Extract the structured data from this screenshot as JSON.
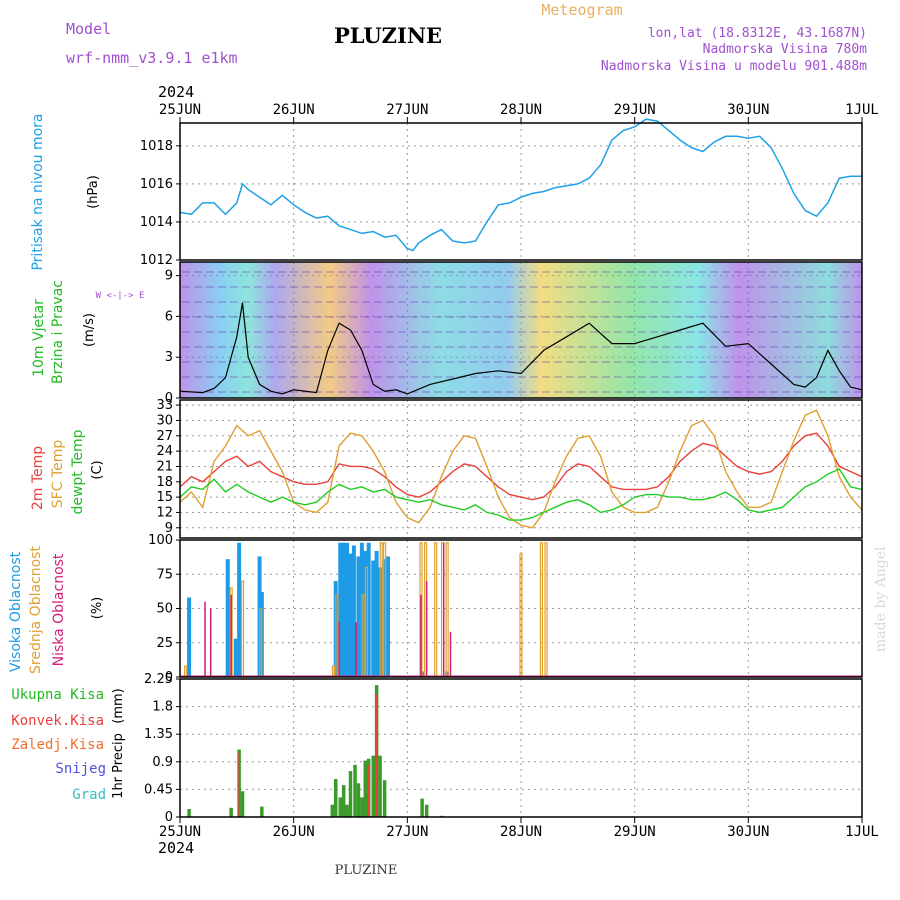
{
  "header": {
    "model_label": "Model",
    "model_name": "wrf-nmm_v3.9.1  e1km",
    "title": "PLUZINE",
    "meteogram_label": "Meteogram",
    "coords": "lon,lat (18.8312E, 43.1687N)",
    "elevation": "Nadmorska Visina 780m",
    "model_elevation": "Nadmorska Visina u modelu 901.488m",
    "year_top": "2024",
    "year_bottom": "2024",
    "footer_title": "PLUZINE",
    "watermark": "made by Angel"
  },
  "time_axis": {
    "labels": [
      "25JUN",
      "26JUN",
      "27JUN",
      "28JUN",
      "29JUN",
      "30JUN",
      "1JUL"
    ]
  },
  "colors": {
    "pressure": "#1ea0e6",
    "temp2m": "#e8413c",
    "sfc_temp": "#e0a030",
    "dewpt": "#22cc22",
    "high_cloud": "#1e9be6",
    "mid_cloud": "#e0a030",
    "low_cloud": "#d0207a",
    "precip_total": "#3a9a2a",
    "precip_conv": "#e8413c"
  },
  "chart_data": [
    {
      "type": "line",
      "name": "pressure",
      "ylabel": "Pritisak na nivou mora",
      "unit": "(hPa)",
      "ylim": [
        1012,
        1019.2
      ],
      "yticks": [
        1012,
        1014,
        1016,
        1018
      ],
      "x_days": [
        0,
        0.1,
        0.2,
        0.3,
        0.4,
        0.5,
        0.55,
        0.6,
        0.7,
        0.8,
        0.9,
        1.0,
        1.1,
        1.2,
        1.3,
        1.4,
        1.5,
        1.6,
        1.7,
        1.8,
        1.9,
        2.0,
        2.05,
        2.1,
        2.2,
        2.3,
        2.4,
        2.5,
        2.6,
        2.7,
        2.8,
        2.9,
        3.0,
        3.1,
        3.2,
        3.3,
        3.4,
        3.5,
        3.6,
        3.7,
        3.8,
        3.9,
        4.0,
        4.1,
        4.2,
        4.3,
        4.4,
        4.5,
        4.6,
        4.7,
        4.8,
        4.9,
        5.0,
        5.1,
        5.2,
        5.3,
        5.4,
        5.5,
        5.6,
        5.7,
        5.8,
        5.9,
        6.0
      ],
      "values": [
        1014.5,
        1014.4,
        1015.0,
        1015.0,
        1014.4,
        1015.0,
        1016.0,
        1015.7,
        1015.3,
        1014.9,
        1015.4,
        1014.9,
        1014.5,
        1014.2,
        1014.3,
        1013.8,
        1013.6,
        1013.4,
        1013.5,
        1013.2,
        1013.3,
        1012.6,
        1012.5,
        1012.9,
        1013.3,
        1013.6,
        1013.0,
        1012.9,
        1013.0,
        1014.0,
        1014.9,
        1015.0,
        1015.3,
        1015.5,
        1015.6,
        1015.8,
        1015.9,
        1016.0,
        1016.3,
        1017.0,
        1018.3,
        1018.8,
        1019.0,
        1019.4,
        1019.3,
        1018.8,
        1018.3,
        1017.9,
        1017.7,
        1018.2,
        1018.5,
        1018.5,
        1018.4,
        1018.5,
        1017.9,
        1016.8,
        1015.5,
        1014.6,
        1014.3,
        1015.0,
        1016.3,
        1016.4,
        1016.4
      ]
    },
    {
      "type": "line",
      "name": "wind",
      "ylabel": "10m Vjetar",
      "ylabel2": "Brzina i Pravac",
      "unit": "(m/s)",
      "compass": "W <-|-> E",
      "ylim": [
        0,
        10
      ],
      "yticks": [
        0,
        3,
        6,
        9
      ],
      "x_days": [
        0,
        0.2,
        0.3,
        0.4,
        0.5,
        0.55,
        0.6,
        0.7,
        0.8,
        0.9,
        1.0,
        1.2,
        1.3,
        1.4,
        1.5,
        1.6,
        1.7,
        1.8,
        1.9,
        2.0,
        2.2,
        2.4,
        2.6,
        2.8,
        3.0,
        3.2,
        3.4,
        3.6,
        3.8,
        4.0,
        4.2,
        4.4,
        4.6,
        4.8,
        5.0,
        5.2,
        5.4,
        5.5,
        5.6,
        5.7,
        5.8,
        5.9,
        6.0
      ],
      "values": [
        0.5,
        0.4,
        0.7,
        1.5,
        4.5,
        7.0,
        3.0,
        1.0,
        0.5,
        0.3,
        0.6,
        0.4,
        3.5,
        5.5,
        5.0,
        3.5,
        1.0,
        0.5,
        0.6,
        0.3,
        1.0,
        1.4,
        1.8,
        2.0,
        1.8,
        3.5,
        4.5,
        5.5,
        4.0,
        4.0,
        4.5,
        5.0,
        5.5,
        3.8,
        4.0,
        2.5,
        1.0,
        0.8,
        1.5,
        3.5,
        2.0,
        0.8,
        0.6
      ]
    },
    {
      "type": "line",
      "name": "temperature",
      "ylabel": "2m Temp",
      "ylabel2": "SFC Temp",
      "ylabel3": "dewpt Temp",
      "unit": "(C)",
      "ylim": [
        7,
        34
      ],
      "yticks": [
        9,
        12,
        15,
        18,
        21,
        24,
        27,
        30,
        33
      ],
      "x_days": [
        0,
        0.1,
        0.2,
        0.3,
        0.4,
        0.5,
        0.6,
        0.7,
        0.8,
        0.9,
        1.0,
        1.1,
        1.2,
        1.3,
        1.4,
        1.5,
        1.6,
        1.7,
        1.8,
        1.9,
        2.0,
        2.1,
        2.2,
        2.3,
        2.4,
        2.5,
        2.6,
        2.7,
        2.8,
        2.9,
        3.0,
        3.1,
        3.2,
        3.3,
        3.4,
        3.5,
        3.6,
        3.7,
        3.8,
        3.9,
        4.0,
        4.1,
        4.2,
        4.3,
        4.4,
        4.5,
        4.6,
        4.7,
        4.8,
        4.9,
        5.0,
        5.1,
        5.2,
        5.3,
        5.4,
        5.5,
        5.6,
        5.7,
        5.8,
        5.9,
        6.0
      ],
      "series": [
        {
          "name": "2m Temp",
          "values": [
            17,
            19,
            18,
            20,
            22,
            23,
            21,
            22,
            20,
            19,
            18,
            17.5,
            17.5,
            18,
            21.5,
            21,
            21,
            20.5,
            19,
            17,
            15.5,
            15,
            16,
            18,
            20,
            21.5,
            21,
            19,
            17,
            15.5,
            15,
            14.5,
            15,
            17,
            20,
            21.5,
            21,
            19,
            17,
            16.5,
            16.5,
            16.5,
            17,
            19,
            22,
            24,
            25.5,
            25,
            23,
            21,
            20,
            19.5,
            20,
            22,
            25,
            27,
            27.5,
            25,
            21,
            20,
            19
          ]
        },
        {
          "name": "SFC Temp",
          "values": [
            14,
            16,
            13,
            22,
            25,
            29,
            27,
            28,
            24,
            20,
            14,
            12.5,
            12,
            14,
            25,
            27.5,
            27,
            24,
            20,
            14,
            11,
            10,
            13,
            19,
            24,
            27,
            26.5,
            21,
            15,
            11,
            9.5,
            9,
            12,
            18,
            23,
            26.5,
            27,
            23,
            16,
            13,
            12,
            12,
            13,
            18,
            24,
            29,
            30,
            27,
            20,
            16,
            13,
            13,
            14,
            20,
            26,
            31,
            32,
            27,
            19,
            15,
            12.5
          ]
        },
        {
          "name": "dewpt Temp",
          "values": [
            15,
            17,
            16.5,
            18.5,
            16,
            17.5,
            16,
            15,
            14,
            15,
            14,
            13.5,
            14,
            16,
            17.5,
            16.5,
            17,
            16,
            16.5,
            15,
            14.5,
            14,
            14.5,
            13.5,
            13,
            12.5,
            13.5,
            12,
            11.5,
            10.5,
            10.5,
            11,
            12,
            13,
            14,
            14.5,
            13.5,
            12,
            12.5,
            13.5,
            15,
            15.5,
            15.5,
            15,
            15,
            14.5,
            14.5,
            15,
            16,
            14.5,
            12.5,
            12,
            12.5,
            13,
            15,
            17,
            18,
            19.5,
            20.5,
            17,
            16.5
          ]
        }
      ]
    },
    {
      "type": "bar",
      "name": "cloud",
      "ylabel": "Visoka Oblacnost",
      "ylabel2": "Srednja Oblacnost",
      "ylabel3": "Niska Oblacnost",
      "unit": "(%)",
      "ylim": [
        0,
        100
      ],
      "yticks": [
        0,
        25,
        50,
        75,
        100
      ],
      "series": [
        {
          "name": "Visoka Oblacnost",
          "x_days": [
            0.08,
            0.42,
            0.49,
            0.52,
            0.7,
            0.72,
            1.37,
            1.41,
            1.44,
            1.47,
            1.5,
            1.53,
            1.57,
            1.6,
            1.63,
            1.66,
            1.7,
            1.73,
            1.76,
            1.8,
            1.83,
            2.13,
            2.35
          ],
          "values": [
            58,
            86,
            28,
            98,
            88,
            62,
            70,
            98,
            98,
            98,
            90,
            96,
            88,
            98,
            92,
            98,
            85,
            92,
            80,
            86,
            88,
            4,
            4
          ]
        },
        {
          "name": "Srednja Oblacnost",
          "x_days": [
            0.05,
            0.45,
            0.55,
            0.71,
            1.35,
            1.38,
            1.61,
            1.64,
            1.77,
            1.8,
            2.12,
            2.16,
            2.25,
            2.31,
            2.35,
            3.0,
            3.18,
            3.22
          ],
          "values": [
            8,
            65,
            70,
            50,
            8,
            60,
            60,
            80,
            98,
            98,
            98,
            98,
            98,
            98,
            98,
            90,
            98,
            98
          ]
        },
        {
          "name": "Niska Oblacnost",
          "x_days": [
            0.22,
            0.27,
            0.45,
            1.4,
            1.55,
            2.12,
            2.17,
            2.32,
            2.38
          ],
          "values": [
            55,
            50,
            60,
            40,
            40,
            60,
            70,
            98,
            33
          ]
        }
      ]
    },
    {
      "type": "bar",
      "name": "precip",
      "ylabel": "1hr Precip",
      "unit": "(mm)",
      "legend": [
        "Ukupna  Kisa",
        "Konvek.Kisa",
        "Zaledj.Kisa",
        "Snijeg",
        "Grad"
      ],
      "ylim": [
        0,
        2.25
      ],
      "yticks": [
        "0",
        "0.45",
        "0.9",
        "1.35",
        "1.8",
        "2.25"
      ],
      "series": [
        {
          "name": "Ukupna  Kisa",
          "x_days": [
            0.08,
            0.45,
            0.52,
            0.55,
            0.72,
            1.34,
            1.37,
            1.41,
            1.44,
            1.47,
            1.5,
            1.54,
            1.57,
            1.6,
            1.63,
            1.66,
            1.7,
            1.73,
            1.76,
            1.8,
            2.13,
            2.17,
            2.3
          ],
          "values": [
            0.13,
            0.15,
            1.1,
            0.42,
            0.17,
            0.2,
            0.62,
            0.32,
            0.52,
            0.2,
            0.75,
            0.85,
            0.55,
            0.32,
            0.92,
            0.95,
            1.0,
            2.15,
            1.0,
            0.6,
            0.3,
            0.2,
            0.02
          ]
        },
        {
          "name": "Konvek.Kisa",
          "x_days": [
            0.52,
            1.66,
            1.73
          ],
          "values": [
            1.05,
            0.85,
            2.0
          ]
        }
      ]
    }
  ]
}
